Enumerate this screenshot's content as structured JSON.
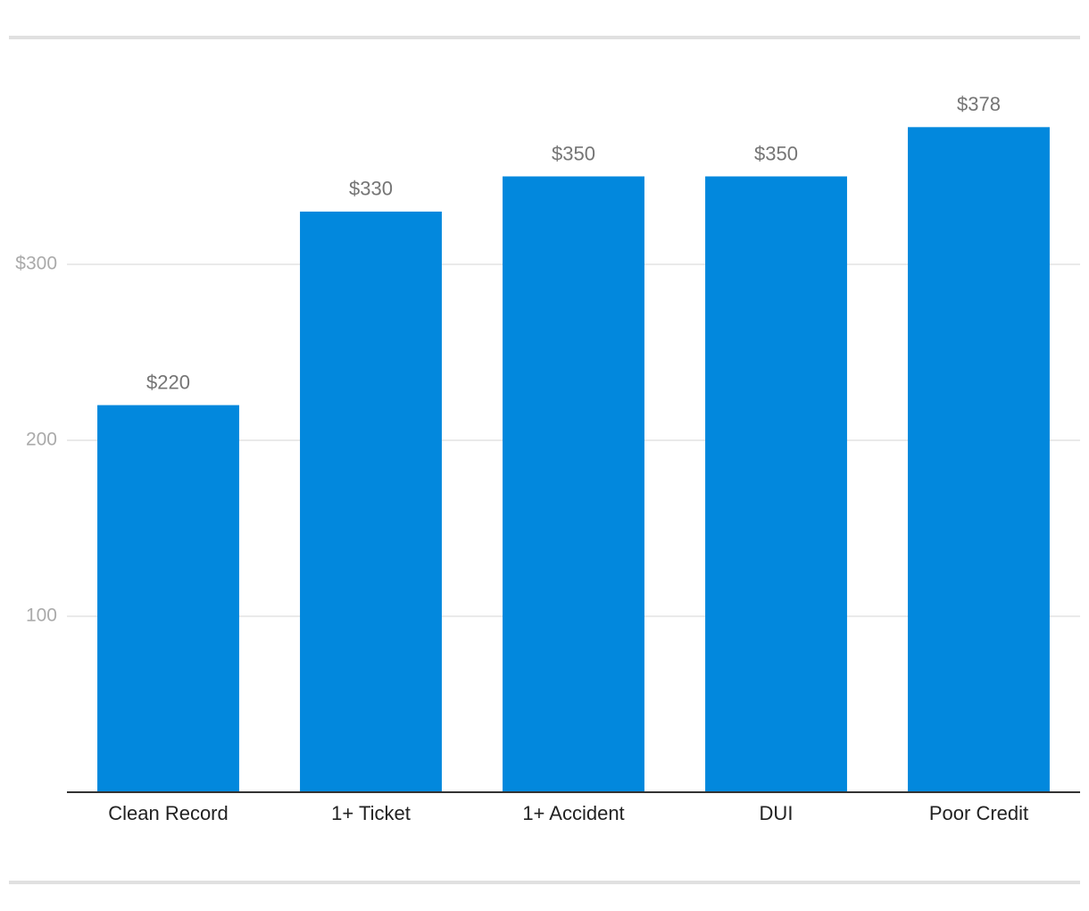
{
  "chart_data": {
    "type": "bar",
    "categories": [
      "Clean Record",
      "1+ Ticket",
      "1+ Accident",
      "DUI",
      "Poor Credit"
    ],
    "values": [
      220,
      330,
      350,
      350,
      378
    ],
    "value_labels": [
      "$220",
      "$330",
      "$350",
      "$350",
      "$378"
    ],
    "color": "#0288dd",
    "ylim": [
      0,
      400
    ],
    "yticks": [
      100,
      200,
      {
        "value": 300,
        "label": "$300"
      }
    ],
    "grid": true
  }
}
